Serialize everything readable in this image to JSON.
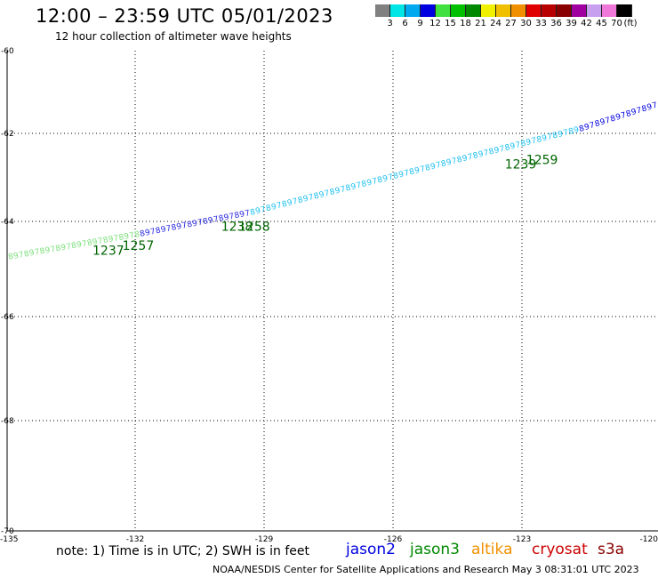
{
  "header": {
    "title": "12:00 – 23:59 UTC 05/01/2023",
    "subtitle": "12 hour collection of altimeter wave heights"
  },
  "legend": {
    "unit": "(ft)",
    "bins": [
      {
        "label": "3",
        "color": "#808080"
      },
      {
        "label": "6",
        "color": "#00e5e5"
      },
      {
        "label": "9",
        "color": "#00a8f0"
      },
      {
        "label": "12",
        "color": "#0000e0"
      },
      {
        "label": "15",
        "color": "#40e040"
      },
      {
        "label": "18",
        "color": "#00c000"
      },
      {
        "label": "21",
        "color": "#008800"
      },
      {
        "label": "24",
        "color": "#f0f000"
      },
      {
        "label": "27",
        "color": "#f0c000"
      },
      {
        "label": "30",
        "color": "#f09000"
      },
      {
        "label": "33",
        "color": "#e00000"
      },
      {
        "label": "36",
        "color": "#b80000"
      },
      {
        "label": "39",
        "color": "#880000"
      },
      {
        "label": "42",
        "color": "#a000a0"
      },
      {
        "label": "45",
        "color": "#c8a0f0"
      },
      {
        "label": "70",
        "color": "#f078d8"
      },
      {
        "label": "",
        "color": "#000000"
      }
    ]
  },
  "map": {
    "lon_ticks": [
      "-135",
      "-132",
      "-129",
      "-126",
      "-123",
      "-120"
    ],
    "lat_ticks": [
      "-60",
      "-62",
      "-64",
      "-66",
      "-68",
      "-70"
    ],
    "lon_range": [
      -135,
      -120
    ],
    "lat_range": [
      -70,
      -60
    ],
    "gridlines": true,
    "track_colors": [
      "#7fe07f",
      "#2a2ae0",
      "#1ec0f0",
      "#0000e0"
    ],
    "time_labels": [
      {
        "text": "1237",
        "lon": -133.0,
        "lat": -64.7,
        "color": "#006400"
      },
      {
        "text": "1257",
        "lon": -132.3,
        "lat": -64.6,
        "color": "#006400"
      },
      {
        "text": "1238",
        "lon": -130.0,
        "lat": -64.2,
        "color": "#006400"
      },
      {
        "text": "1258",
        "lon": -129.6,
        "lat": -64.2,
        "color": "#006400"
      },
      {
        "text": "1239",
        "lon": -123.4,
        "lat": -62.8,
        "color": "#006400"
      },
      {
        "text": "1259",
        "lon": -122.9,
        "lat": -62.7,
        "color": "#006400"
      }
    ]
  },
  "footer": {
    "note": "note:  1) Time is in UTC; 2) SWH is in feet",
    "satellites": [
      {
        "name": "jason2",
        "color": "#0000e0"
      },
      {
        "name": "jason3",
        "color": "#008800"
      },
      {
        "name": "altika",
        "color": "#f09000"
      },
      {
        "name": "cryosat",
        "color": "#cc0000"
      },
      {
        "name": "s3a",
        "color": "#880000"
      }
    ],
    "credit": "NOAA/NESDIS Center for Satellite Applications and Research    May  3 08:31:01 UTC 2023"
  }
}
